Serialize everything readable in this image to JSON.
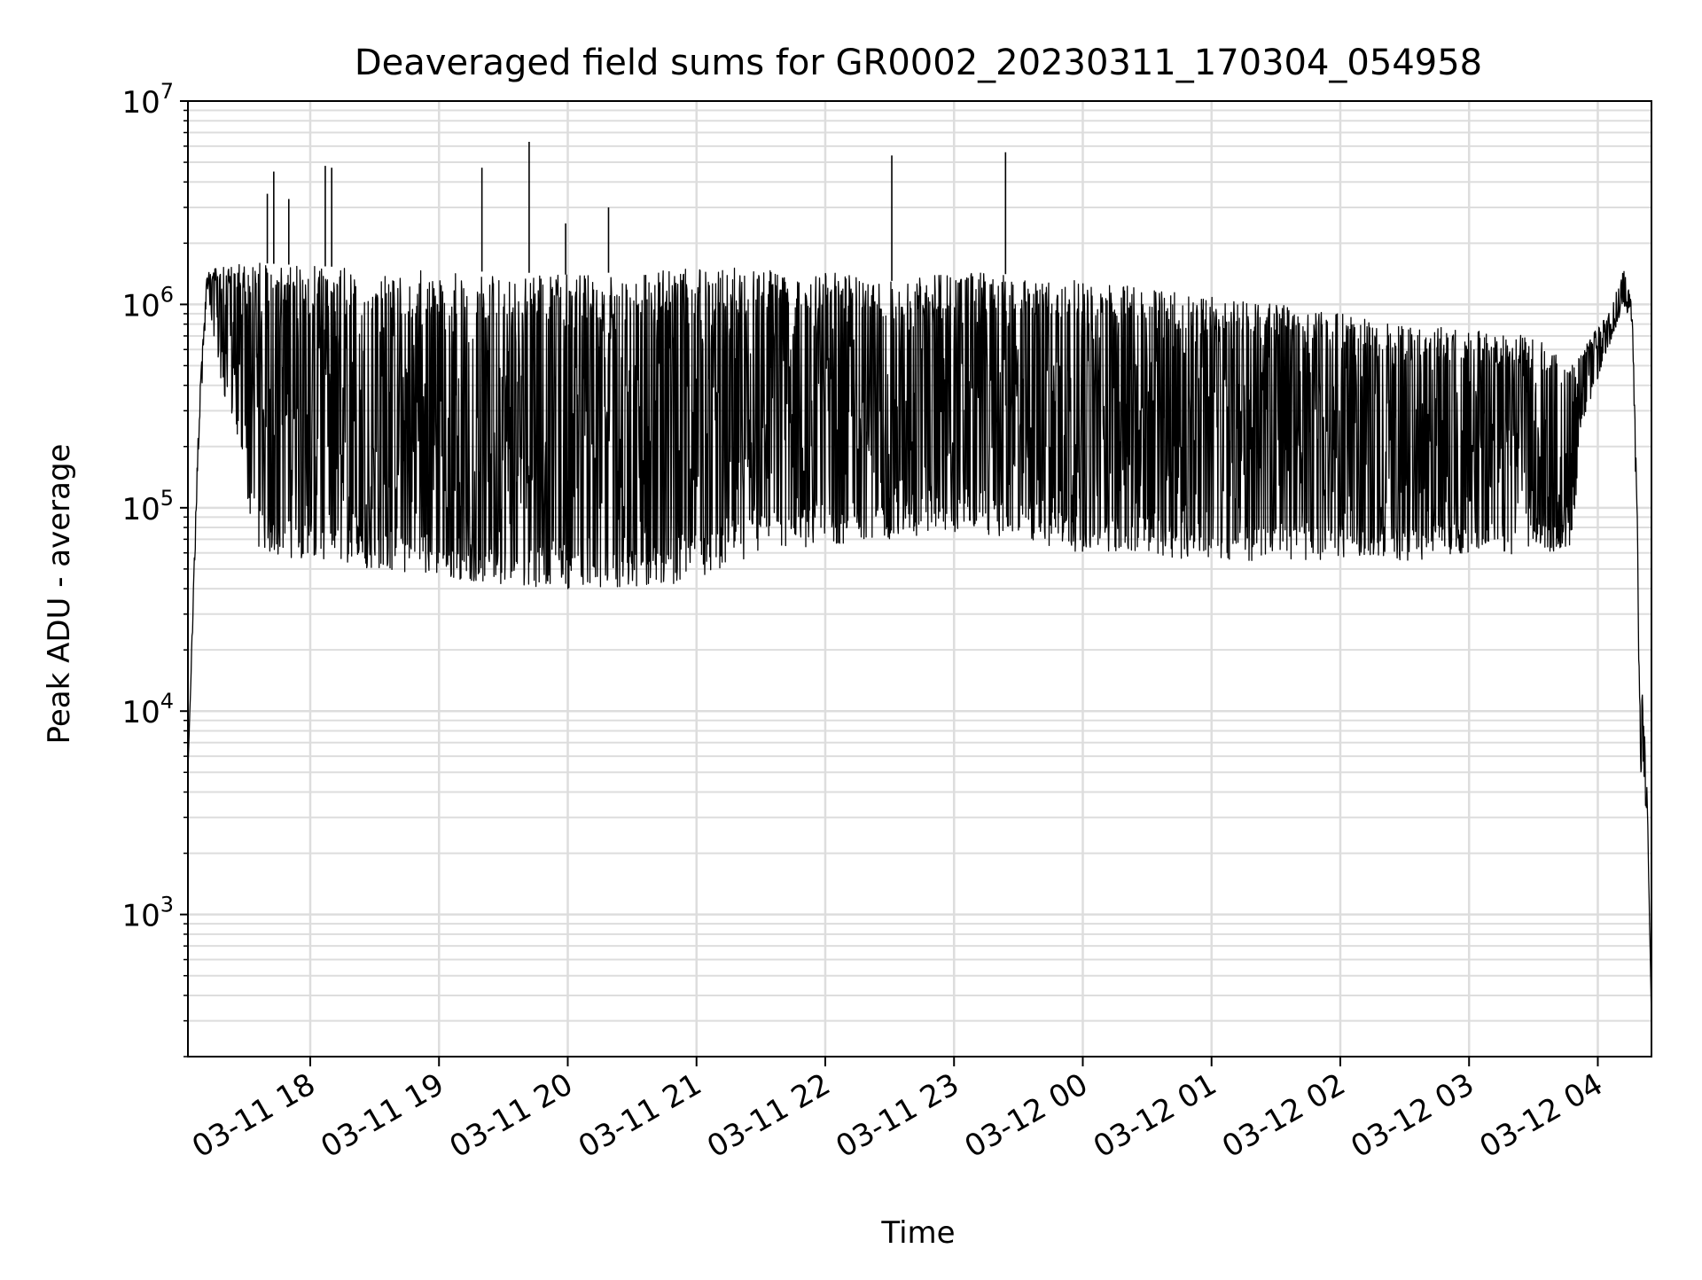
{
  "chart_data": {
    "type": "line",
    "title": "Deaveraged field sums for GR0002_20230311_170304_054958",
    "xlabel": "Time",
    "ylabel": "Peak ADU - average",
    "y_scale": "log",
    "ylim": [
      200,
      10000000
    ],
    "xlim": [
      "2023-03-11 17:03",
      "2023-03-12 04:25"
    ],
    "x_tick_labels": [
      "03-11 18",
      "03-11 19",
      "03-11 20",
      "03-11 21",
      "03-11 22",
      "03-11 23",
      "03-12 00",
      "03-12 01",
      "03-12 02",
      "03-12 03",
      "03-12 04"
    ],
    "y_tick_labels": [
      {
        "value": 1000,
        "base": "10",
        "exp": "3"
      },
      {
        "value": 10000,
        "base": "10",
        "exp": "4"
      },
      {
        "value": 100000,
        "base": "10",
        "exp": "5"
      },
      {
        "value": 1000000,
        "base": "10",
        "exp": "6"
      },
      {
        "value": 10000000,
        "base": "10",
        "exp": "7"
      }
    ],
    "grid": true,
    "line_color": "#000000",
    "series": [
      {
        "envelope": [
          {
            "t": "2023-03-11 17:03",
            "low": 5000,
            "high": 5000
          },
          {
            "t": "2023-03-11 17:08",
            "low": 200000,
            "high": 300000
          },
          {
            "t": "2023-03-11 17:12",
            "low": 1200000,
            "high": 1500000
          },
          {
            "t": "2023-03-11 17:18",
            "low": 400000,
            "high": 1500000
          },
          {
            "t": "2023-03-11 17:25",
            "low": 250000,
            "high": 1600000
          },
          {
            "t": "2023-03-11 17:35",
            "low": 60000,
            "high": 1600000
          },
          {
            "t": "2023-03-11 18:00",
            "low": 55000,
            "high": 1550000
          },
          {
            "t": "2023-03-11 18:30",
            "low": 50000,
            "high": 1500000
          },
          {
            "t": "2023-03-11 19:00",
            "low": 45000,
            "high": 1450000
          },
          {
            "t": "2023-03-11 19:30",
            "low": 42000,
            "high": 1450000
          },
          {
            "t": "2023-03-11 20:00",
            "low": 40000,
            "high": 1400000
          },
          {
            "t": "2023-03-11 20:30",
            "low": 38000,
            "high": 1450000
          },
          {
            "t": "2023-03-11 21:00",
            "low": 45000,
            "high": 1500000
          },
          {
            "t": "2023-03-11 21:30",
            "low": 60000,
            "high": 1550000
          },
          {
            "t": "2023-03-11 22:00",
            "low": 65000,
            "high": 1500000
          },
          {
            "t": "2023-03-11 22:30",
            "low": 70000,
            "high": 1300000
          },
          {
            "t": "2023-03-11 23:00",
            "low": 75000,
            "high": 1450000
          },
          {
            "t": "2023-03-11 23:30",
            "low": 70000,
            "high": 1400000
          },
          {
            "t": "2023-03-12 00:00",
            "low": 60000,
            "high": 1300000
          },
          {
            "t": "2023-03-12 00:30",
            "low": 58000,
            "high": 1200000
          },
          {
            "t": "2023-03-12 01:00",
            "low": 55000,
            "high": 1100000
          },
          {
            "t": "2023-03-12 01:30",
            "low": 55000,
            "high": 1000000
          },
          {
            "t": "2023-03-12 02:00",
            "low": 55000,
            "high": 900000
          },
          {
            "t": "2023-03-12 02:30",
            "low": 55000,
            "high": 800000
          },
          {
            "t": "2023-03-12 03:00",
            "low": 58000,
            "high": 750000
          },
          {
            "t": "2023-03-12 03:30",
            "low": 60000,
            "high": 700000
          },
          {
            "t": "2023-03-12 03:48",
            "low": 60000,
            "high": 500000
          },
          {
            "t": "2023-03-12 03:52",
            "low": 250000,
            "high": 600000
          },
          {
            "t": "2023-03-12 04:05",
            "low": 600000,
            "high": 900000
          },
          {
            "t": "2023-03-12 04:12",
            "low": 1000000,
            "high": 1500000
          },
          {
            "t": "2023-03-12 04:16",
            "low": 800000,
            "high": 1000000
          },
          {
            "t": "2023-03-12 04:20",
            "low": 5000,
            "high": 20000
          },
          {
            "t": "2023-03-12 04:23",
            "low": 3000,
            "high": 4000
          },
          {
            "t": "2023-03-12 04:25",
            "low": 300,
            "high": 300
          }
        ],
        "spikes": [
          {
            "t": "2023-03-11 17:40",
            "y": 3500000
          },
          {
            "t": "2023-03-11 17:43",
            "y": 4500000
          },
          {
            "t": "2023-03-11 17:50",
            "y": 3300000
          },
          {
            "t": "2023-03-11 18:07",
            "y": 4800000
          },
          {
            "t": "2023-03-11 18:10",
            "y": 4700000
          },
          {
            "t": "2023-03-11 19:20",
            "y": 4700000
          },
          {
            "t": "2023-03-11 19:42",
            "y": 6300000
          },
          {
            "t": "2023-03-11 19:59",
            "y": 2500000
          },
          {
            "t": "2023-03-11 20:19",
            "y": 3000000
          },
          {
            "t": "2023-03-11 22:31",
            "y": 5400000
          },
          {
            "t": "2023-03-11 23:24",
            "y": 5600000
          }
        ]
      }
    ]
  }
}
